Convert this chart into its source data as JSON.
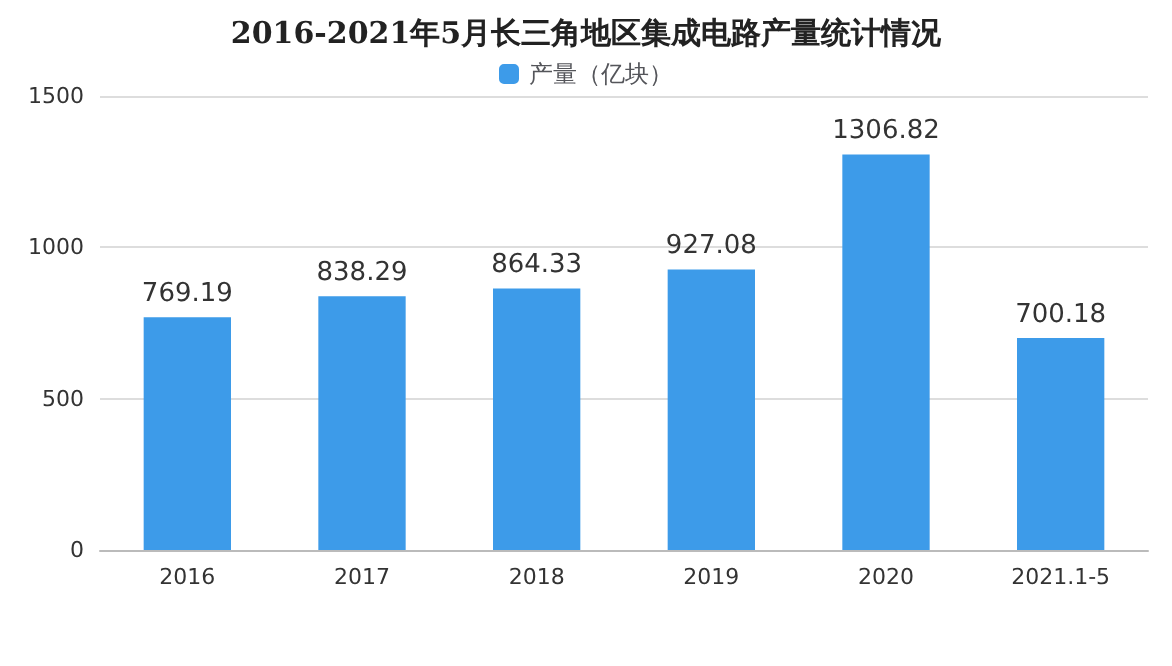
{
  "chart_data": {
    "type": "bar",
    "title": "2016-2021年5月长三角地区集成电路产量统计情况",
    "categories": [
      "2016",
      "2017",
      "2018",
      "2019",
      "2020",
      "2021.1-5"
    ],
    "series": [
      {
        "name": "产量（亿块）",
        "color": "#3d9be9",
        "values": [
          769.19,
          838.29,
          864.33,
          927.08,
          1306.82,
          700.18
        ]
      }
    ],
    "ylim": [
      0,
      1500
    ],
    "yticks": [
      0,
      500,
      1000,
      1500
    ],
    "grid": "y",
    "legend": "top",
    "data_labels": true
  }
}
